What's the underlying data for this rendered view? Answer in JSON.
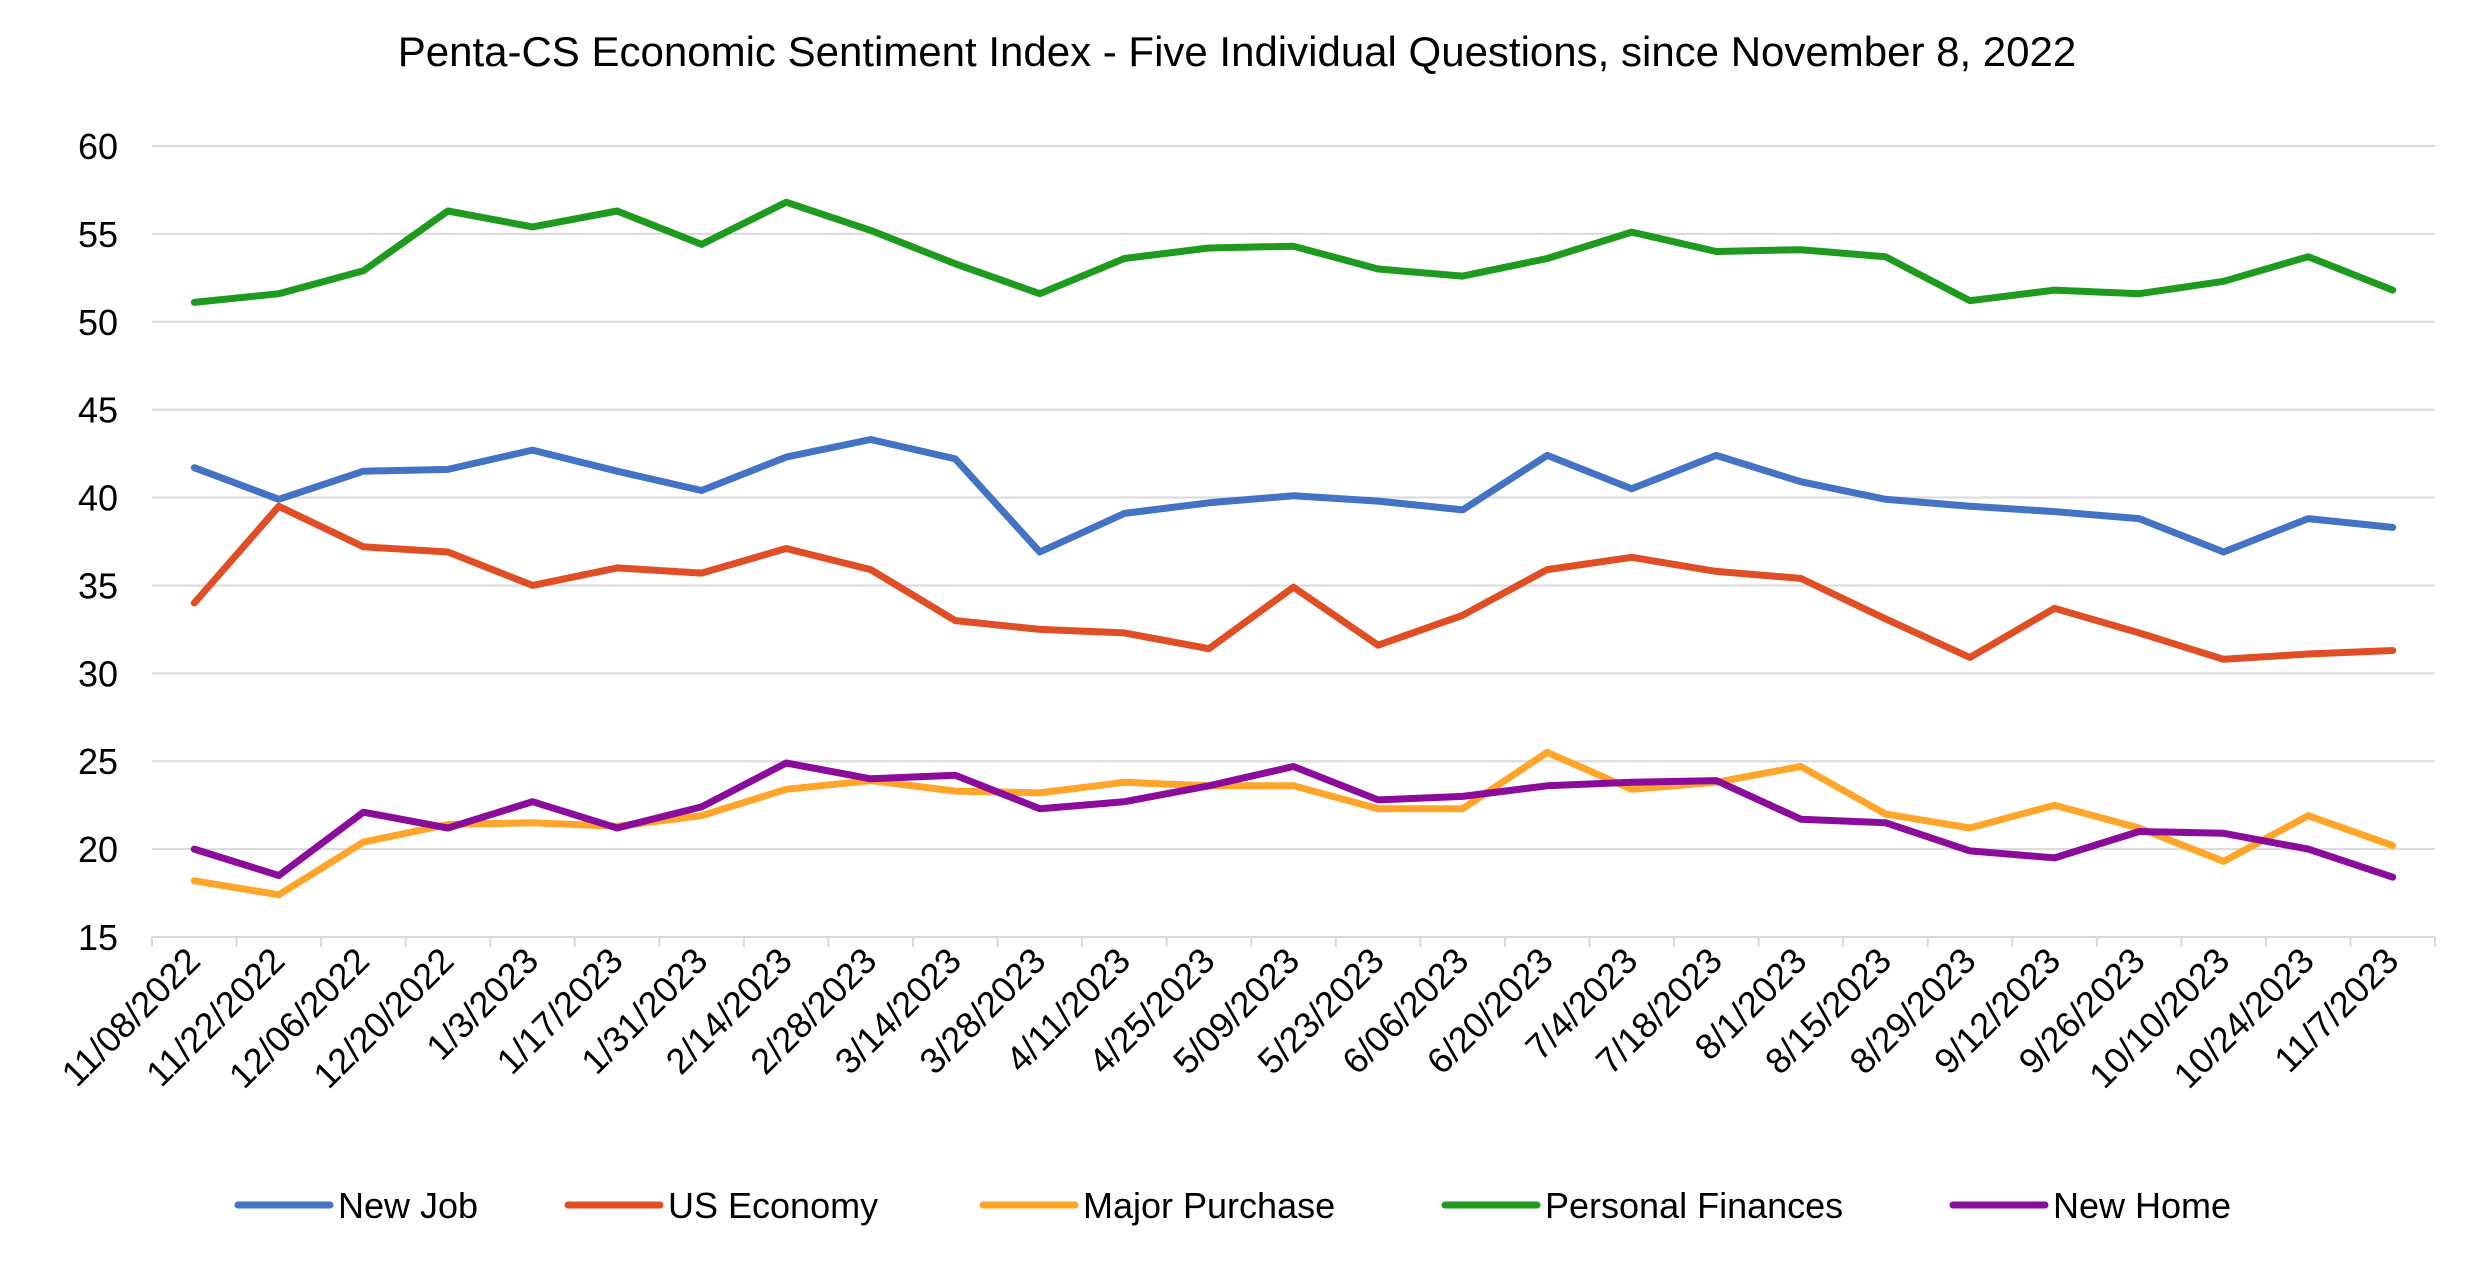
{
  "chart_data": {
    "type": "line",
    "title": "Penta-CS Economic Sentiment Index - Five Individual Questions, since November 8, 2022",
    "xlabel": "",
    "ylabel": "",
    "ylim": [
      15,
      60
    ],
    "yticks": [
      "15",
      "20",
      "25",
      "30",
      "35",
      "40",
      "45",
      "50",
      "55",
      "60"
    ],
    "grid": "horizontal",
    "legend_position": "bottom",
    "categories": [
      "11/08/2022",
      "11/22/2022",
      "12/06/2022",
      "12/20/2022",
      "1/3/2023",
      "1/17/2023",
      "1/31/2023",
      "2/14/2023",
      "2/28/2023",
      "3/14/2023",
      "3/28/2023",
      "4/11/2023",
      "4/25/2023",
      "5/09/2023",
      "5/23/2023",
      "6/06/2023",
      "6/20/2023",
      "7/4/2023",
      "7/18/2023",
      "8/1/2023",
      "8/15/2023",
      "8/29/2023",
      "9/12/2023",
      "9/26/2023",
      "10/10/2023",
      "10/24/2023",
      "11/7/2023"
    ],
    "series": [
      {
        "name": "New Job",
        "color": "#4472C4",
        "values": [
          41.7,
          39.9,
          41.5,
          41.6,
          42.7,
          41.5,
          40.4,
          42.3,
          43.3,
          42.2,
          36.9,
          39.1,
          39.7,
          40.1,
          39.8,
          39.3,
          42.4,
          40.5,
          42.4,
          40.9,
          39.9,
          39.5,
          39.2,
          38.8,
          36.9,
          38.8,
          38.3
        ]
      },
      {
        "name": "US Economy",
        "color": "#E04E25",
        "values": [
          34.0,
          39.5,
          37.2,
          36.9,
          35.0,
          36.0,
          35.7,
          37.1,
          35.9,
          33.0,
          32.5,
          32.3,
          31.4,
          34.9,
          31.6,
          33.3,
          35.9,
          36.6,
          35.8,
          35.4,
          33.1,
          30.9,
          33.7,
          32.3,
          30.8,
          31.1,
          31.3
        ]
      },
      {
        "name": "Major Purchase",
        "color": "#FFA52A",
        "values": [
          18.2,
          17.4,
          20.4,
          21.4,
          21.5,
          21.3,
          21.9,
          23.4,
          23.9,
          23.3,
          23.2,
          23.8,
          23.6,
          23.6,
          22.3,
          22.3,
          25.5,
          23.4,
          23.8,
          24.7,
          22.0,
          21.2,
          22.5,
          21.2,
          19.3,
          21.9,
          20.2
        ]
      },
      {
        "name": "Personal Finances",
        "color": "#1E9A1E",
        "values": [
          51.1,
          51.6,
          52.9,
          56.3,
          55.4,
          56.3,
          54.4,
          56.8,
          55.2,
          53.3,
          51.6,
          53.6,
          54.2,
          54.3,
          53.0,
          52.6,
          53.6,
          55.1,
          54.0,
          54.1,
          53.7,
          51.2,
          51.8,
          51.6,
          52.3,
          53.7,
          51.8
        ]
      },
      {
        "name": "New Home",
        "color": "#8B0B9B",
        "values": [
          20.0,
          18.5,
          22.1,
          21.2,
          22.7,
          21.2,
          22.4,
          24.9,
          24.0,
          24.2,
          22.3,
          22.7,
          23.6,
          24.7,
          22.8,
          23.0,
          23.6,
          23.8,
          23.9,
          21.7,
          21.5,
          19.9,
          19.5,
          21.0,
          20.9,
          20.0,
          18.4
        ]
      }
    ]
  }
}
